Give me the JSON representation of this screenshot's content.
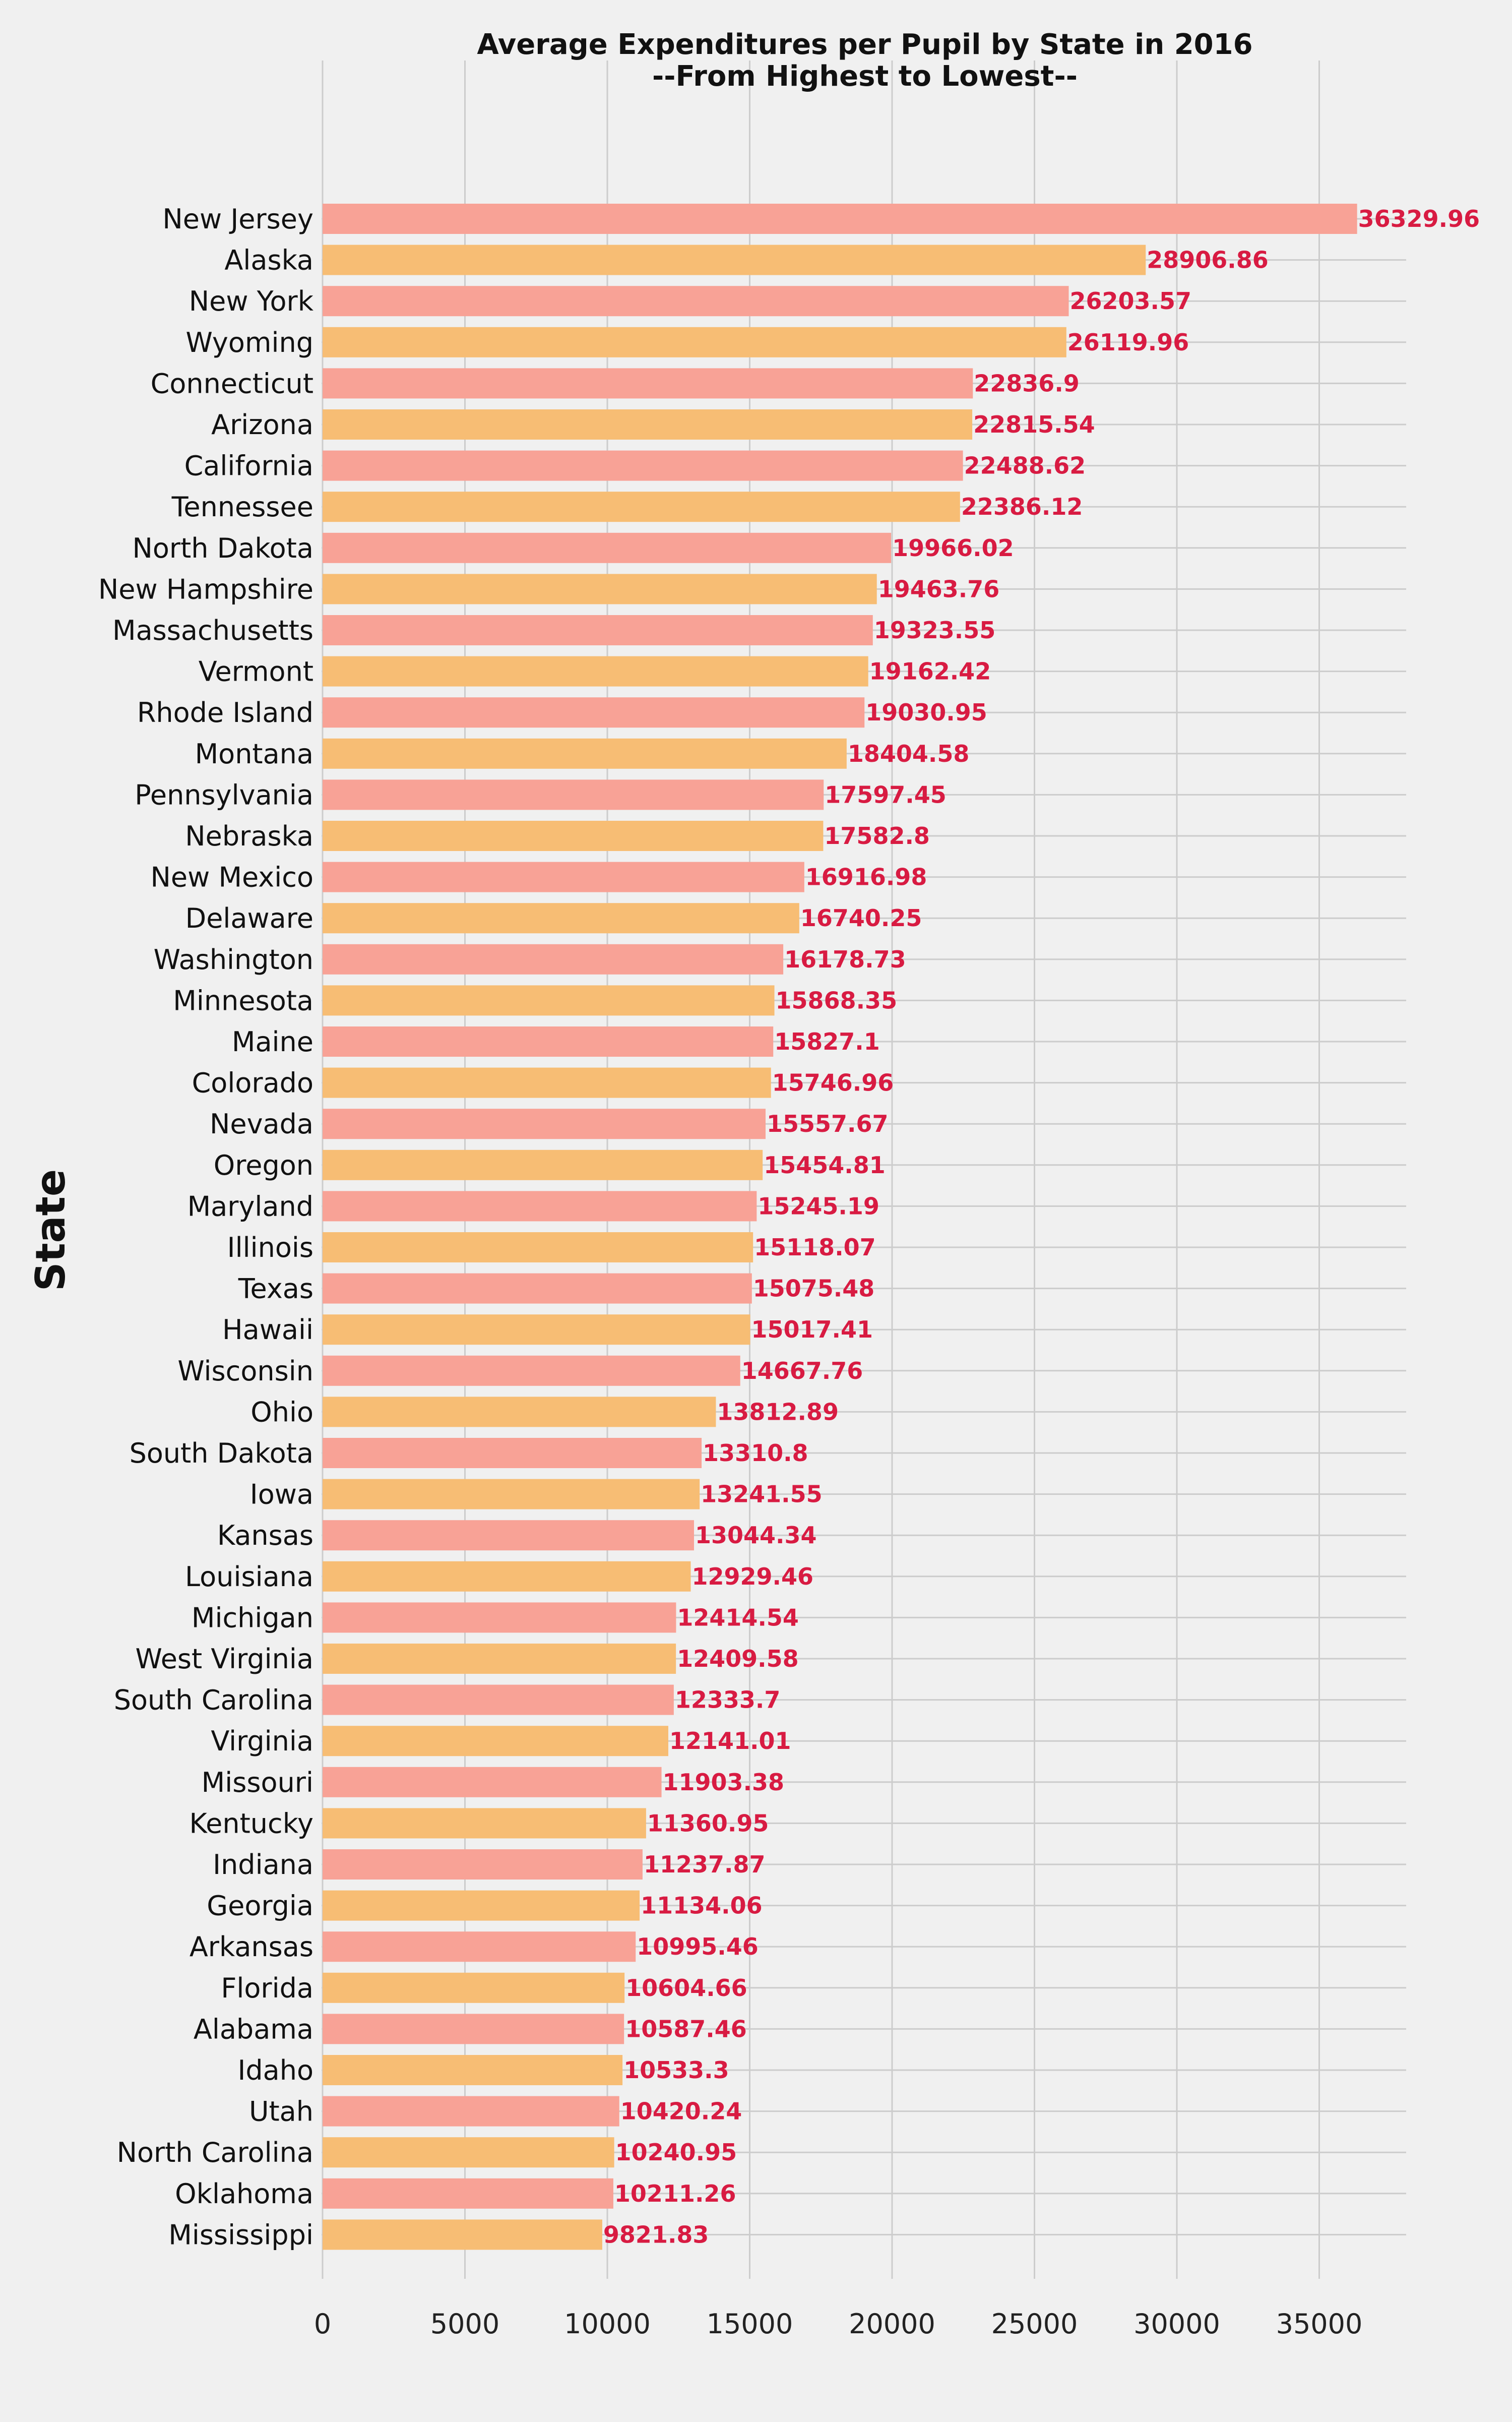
{
  "chart_data": {
    "type": "bar",
    "orientation": "horizontal",
    "title": "Average Expenditures per Pupil by State in 2016",
    "subtitle": "--From Highest to Lowest--",
    "xlabel": "",
    "ylabel": "State",
    "xlim": [
      0,
      38000
    ],
    "x_ticks": [
      0,
      5000,
      10000,
      15000,
      20000,
      25000,
      30000,
      35000
    ],
    "grid": true,
    "colors": {
      "primary": "#f8a296",
      "secondary": "#f7bd74",
      "value_label": "#d81b42",
      "grid": "#cccccc",
      "background": "#f0f0f0"
    },
    "categories": [
      "New Jersey",
      "Alaska",
      "New York",
      "Wyoming",
      "Connecticut",
      "Arizona",
      "California",
      "Tennessee",
      "North Dakota",
      "New Hampshire",
      "Massachusetts",
      "Vermont",
      "Rhode Island",
      "Montana",
      "Pennsylvania",
      "Nebraska",
      "New Mexico",
      "Delaware",
      "Washington",
      "Minnesota",
      "Maine",
      "Colorado",
      "Nevada",
      "Oregon",
      "Maryland",
      "Illinois",
      "Texas",
      "Hawaii",
      "Wisconsin",
      "Ohio",
      "South Dakota",
      "Iowa",
      "Kansas",
      "Louisiana",
      "Michigan",
      "West Virginia",
      "South Carolina",
      "Virginia",
      "Missouri",
      "Kentucky",
      "Indiana",
      "Georgia",
      "Arkansas",
      "Florida",
      "Alabama",
      "Idaho",
      "Utah",
      "North Carolina",
      "Oklahoma",
      "Mississippi"
    ],
    "values": [
      36329.96,
      28906.86,
      26203.57,
      26119.96,
      22836.9,
      22815.54,
      22488.62,
      22386.12,
      19966.02,
      19463.76,
      19323.55,
      19162.42,
      19030.95,
      18404.58,
      17597.45,
      17582.8,
      16916.98,
      16740.25,
      16178.73,
      15868.35,
      15827.1,
      15746.96,
      15557.67,
      15454.81,
      15245.19,
      15118.07,
      15075.48,
      15017.41,
      14667.76,
      13812.89,
      13310.8,
      13241.55,
      13044.34,
      12929.46,
      12414.54,
      12409.58,
      12333.7,
      12141.01,
      11903.38,
      11360.95,
      11237.87,
      11134.06,
      10995.46,
      10604.66,
      10587.46,
      10533.3,
      10420.24,
      10240.95,
      10211.26,
      9821.83
    ],
    "value_labels": [
      "36329.96",
      "28906.86",
      "26203.57",
      "26119.96",
      "22836.9",
      "22815.54",
      "22488.62",
      "22386.12",
      "19966.02",
      "19463.76",
      "19323.55",
      "19162.42",
      "19030.95",
      "18404.58",
      "17597.45",
      "17582.8",
      "16916.98",
      "16740.25",
      "16178.73",
      "15868.35",
      "15827.1",
      "15746.96",
      "15557.67",
      "15454.81",
      "15245.19",
      "15118.07",
      "15075.48",
      "15017.41",
      "14667.76",
      "13812.89",
      "13310.8",
      "13241.55",
      "13044.34",
      "12929.46",
      "12414.54",
      "12409.58",
      "12333.7",
      "12141.01",
      "11903.38",
      "11360.95",
      "11237.87",
      "11134.06",
      "10995.46",
      "10604.66",
      "10587.46",
      "10533.3",
      "10420.24",
      "10240.95",
      "10211.26",
      "9821.83"
    ]
  }
}
